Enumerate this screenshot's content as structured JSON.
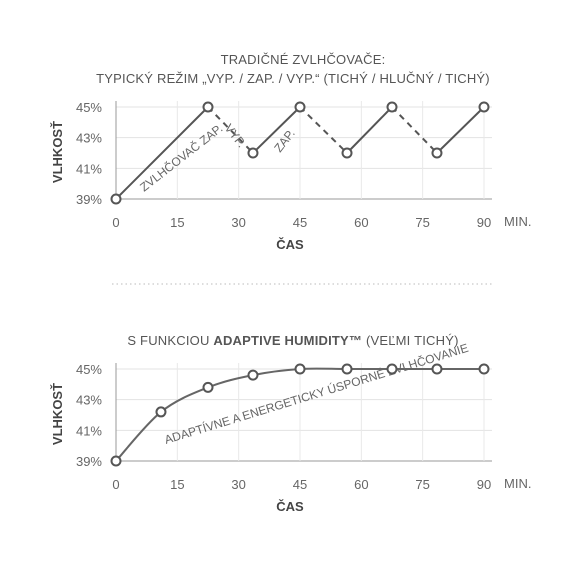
{
  "chart_data": [
    {
      "type": "line",
      "title_line1": "TRADIČNÉ ZVLHČOVAČE:",
      "title_line2": "TYPICKÝ REŽIM „VYP. / ZAP. / VYP.“ (TICHÝ / HLUČNÝ / TICHÝ)",
      "ylabel": "VLHKOSŤ",
      "xlabel": "ČAS",
      "x_unit": "MIN.",
      "xlim": [
        0,
        90
      ],
      "ylim": [
        39,
        45
      ],
      "x_ticks": [
        "0",
        "15",
        "30",
        "45",
        "60",
        "75",
        "90"
      ],
      "y_ticks": [
        "45%",
        "43%",
        "41%",
        "39%"
      ],
      "grid": true,
      "series": [
        {
          "x": [
            0,
            22.5,
            33.5,
            45,
            56.5,
            67.5,
            78.5,
            90
          ],
          "y": [
            39,
            45,
            42,
            45,
            42,
            45,
            42,
            45
          ],
          "segment_styles": [
            "solid",
            "dashed",
            "solid",
            "dashed",
            "solid",
            "dashed",
            "solid"
          ]
        }
      ],
      "annotations": [
        "ZVLHČOVAČ ZAP.",
        "VYP.",
        "ZAP."
      ]
    },
    {
      "type": "line",
      "title_prefix": "S FUNKCIOU ",
      "title_bold": "ADAPTIVE HUMIDITY™",
      "title_suffix": " (VEĽMI TICHÝ)",
      "ylabel": "VLHKOSŤ",
      "xlabel": "ČAS",
      "x_unit": "MIN.",
      "xlim": [
        0,
        90
      ],
      "ylim": [
        39,
        45
      ],
      "x_ticks": [
        "0",
        "15",
        "30",
        "45",
        "60",
        "75",
        "90"
      ],
      "y_ticks": [
        "45%",
        "43%",
        "41%",
        "39%"
      ],
      "grid": true,
      "series": [
        {
          "x": [
            0,
            11,
            22.5,
            33.5,
            45,
            56.5,
            67.5,
            78.5,
            90
          ],
          "y": [
            39,
            42.2,
            43.8,
            44.6,
            45,
            45,
            45,
            45,
            45
          ],
          "segment_styles": [
            "solid",
            "solid",
            "solid",
            "solid",
            "solid",
            "solid",
            "solid",
            "solid"
          ]
        }
      ],
      "annotations": [
        "ADAPTÍVNE A ENERGETICKY ÚSPORNÉ ZVLHČOVANIE"
      ]
    }
  ]
}
